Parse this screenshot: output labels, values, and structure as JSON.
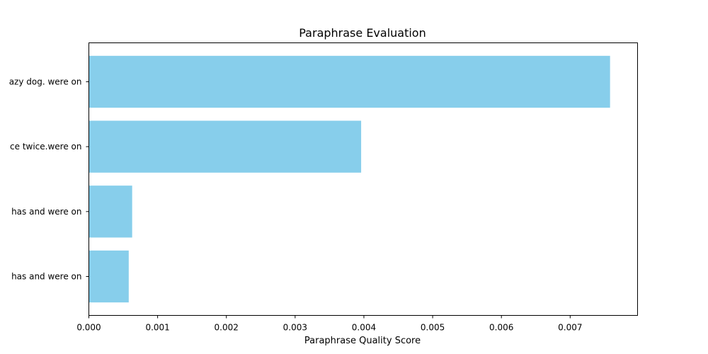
{
  "chart_data": {
    "type": "bar",
    "orientation": "horizontal",
    "title": "Paraphrase Evaluation",
    "xlabel": "Paraphrase Quality Score",
    "ylabel": "",
    "categories": [
      "has and were on",
      "has and were on",
      "ce twice.were on",
      "azy dog. were on"
    ],
    "values": [
      0.00058,
      0.00063,
      0.00396,
      0.00758
    ],
    "xlim": [
      0,
      0.00798
    ],
    "xticks": [
      0,
      0.001,
      0.002,
      0.003,
      0.004,
      0.005,
      0.006,
      0.007
    ],
    "xtick_labels": [
      "0.000",
      "0.001",
      "0.002",
      "0.003",
      "0.004",
      "0.005",
      "0.006",
      "0.007"
    ],
    "bar_color": "#87ceeb",
    "grid": false,
    "legend": "none"
  }
}
